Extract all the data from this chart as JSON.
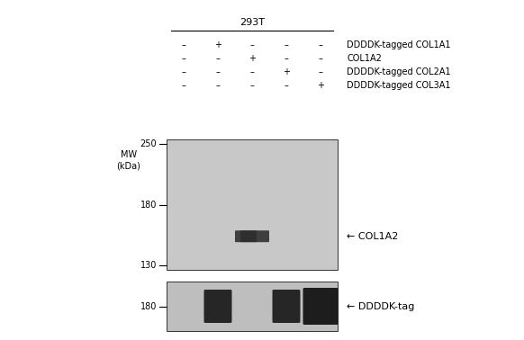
{
  "bg_color": "#ffffff",
  "gel_upper_color": "#c8c8c8",
  "gel_lower_color": "#bebebe",
  "title": "293T",
  "mw_label": "MW\n(kDa)",
  "label_rows": [
    [
      "–",
      "+",
      "–",
      "–",
      "–",
      "DDDDK-tagged COL1A1"
    ],
    [
      "–",
      "–",
      "+",
      "–",
      "–",
      "COL1A2"
    ],
    [
      "–",
      "–",
      "–",
      "+",
      "–",
      "DDDDK-tagged COL2A1"
    ],
    [
      "–",
      "–",
      "–",
      "–",
      "+",
      "DDDDK-tagged COL3A1"
    ]
  ],
  "mw_upper": [
    250,
    180,
    130
  ],
  "mw_lower": [
    180
  ],
  "col1a2_label": "← COL1A2",
  "ddddk_label": "← DDDDK-tag",
  "upper_band_lane": 2,
  "upper_band_mw": 152,
  "lower_band_lanes": [
    1,
    3,
    4
  ],
  "band_dark": "#222222",
  "band_mid": "#444444",
  "font_size_title": 8,
  "font_size_row": 7,
  "font_size_mw": 7,
  "font_size_arrow": 8
}
